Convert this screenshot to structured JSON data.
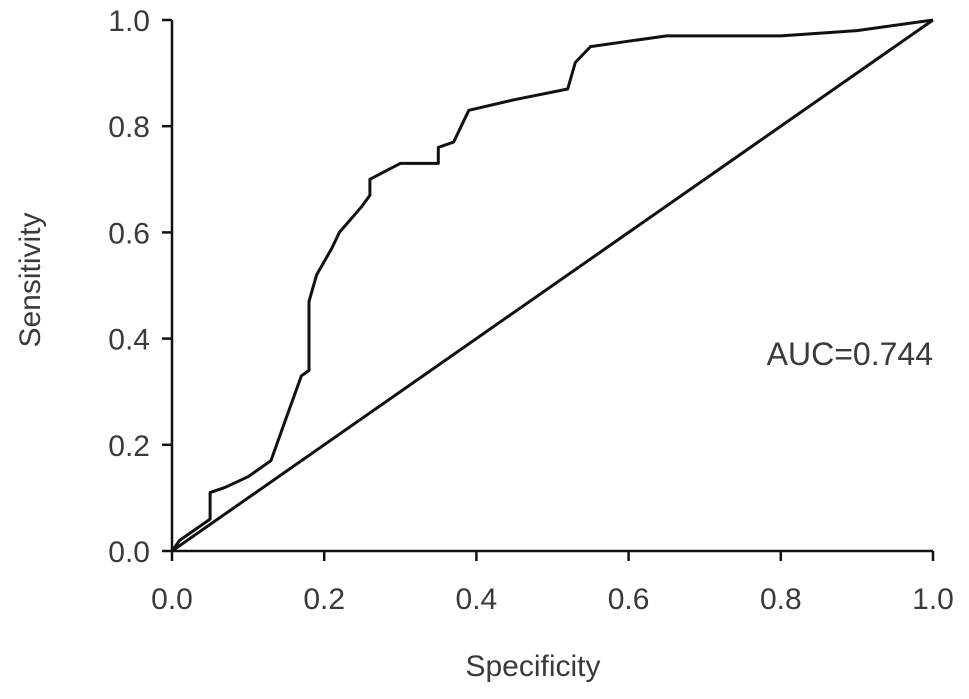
{
  "chart_data": {
    "type": "line",
    "title": "",
    "xlabel": "Specificity",
    "ylabel": "Sensitivity",
    "xlim": [
      0,
      1
    ],
    "ylim": [
      0,
      1
    ],
    "x_ticks": [
      "0.0",
      "0.2",
      "0.4",
      "0.6",
      "0.8",
      "1.0"
    ],
    "y_ticks": [
      "0.0",
      "0.2",
      "0.4",
      "0.6",
      "0.8",
      "1.0"
    ],
    "grid": false,
    "annotation": "AUC=0.744",
    "series": [
      {
        "x": [
          0.0,
          0.01,
          0.05,
          0.05,
          0.07,
          0.1,
          0.13,
          0.15,
          0.17,
          0.18,
          0.18,
          0.19,
          0.21,
          0.22,
          0.25,
          0.26,
          0.26,
          0.3,
          0.35,
          0.35,
          0.37,
          0.38,
          0.39,
          0.45,
          0.52,
          0.53,
          0.55,
          0.6,
          0.65,
          0.8,
          0.9,
          1.0
        ],
        "y": [
          0.0,
          0.02,
          0.06,
          0.11,
          0.12,
          0.14,
          0.17,
          0.25,
          0.33,
          0.34,
          0.47,
          0.52,
          0.57,
          0.6,
          0.65,
          0.67,
          0.7,
          0.73,
          0.73,
          0.76,
          0.77,
          0.8,
          0.83,
          0.85,
          0.87,
          0.92,
          0.95,
          0.96,
          0.97,
          0.97,
          0.98,
          1.0
        ]
      },
      {
        "x": [
          0.0,
          1.0
        ],
        "y": [
          0.0,
          1.0
        ]
      }
    ]
  }
}
